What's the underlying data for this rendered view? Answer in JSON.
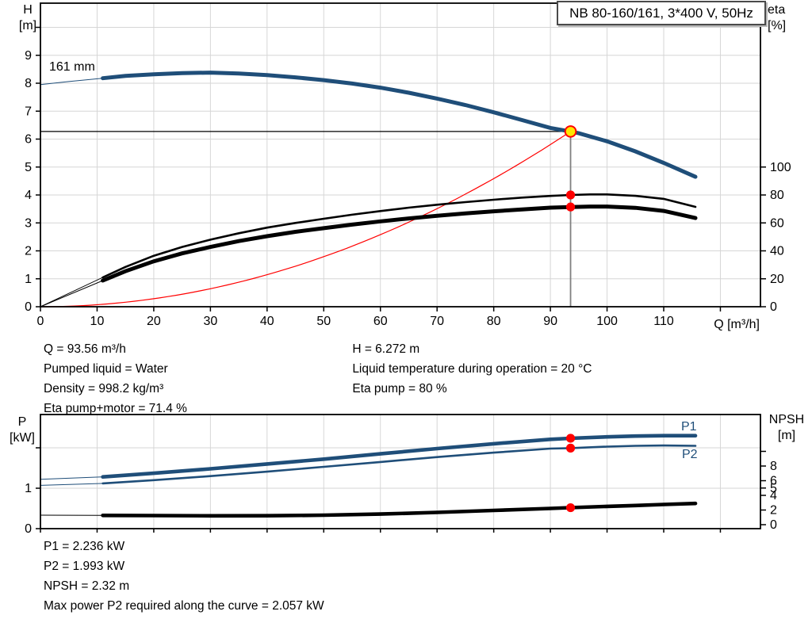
{
  "colors": {
    "blue": "#1F4E79",
    "red": "#FF0000",
    "yellow": "#FFE600",
    "grid": "#D6D6D6",
    "axis": "#000000",
    "gray_drop_line": "#808080"
  },
  "chart_data": [
    {
      "id": "qh-eta-chart",
      "type": "line",
      "title": "NB 80-160/161, 3*400 V, 50Hz",
      "xlabel": "Q [m³/h]",
      "ylabel_left": [
        "H",
        "[m]"
      ],
      "ylabel_right": [
        "eta",
        "[%]"
      ],
      "impeller_label": "161 mm",
      "grid": true,
      "xlim": [
        0,
        127
      ],
      "ylim_left": [
        0,
        10.87
      ],
      "eta_percent_per_left_unit": 20,
      "x_tick_values": [
        0,
        10,
        20,
        30,
        40,
        50,
        60,
        70,
        80,
        90,
        100,
        110
      ],
      "x_grid_values": [
        10,
        20,
        30,
        40,
        50,
        60,
        70,
        80,
        90,
        100,
        110,
        120
      ],
      "left_tick_values": [
        0,
        1,
        2,
        3,
        4,
        5,
        6,
        7,
        8,
        9,
        10
      ],
      "left_tick_labels": [
        "0",
        "1",
        "2",
        "3",
        "4",
        "5",
        "6",
        "7",
        "8",
        "9",
        ""
      ],
      "right_tick_values": [
        0,
        20,
        40,
        60,
        80,
        100
      ],
      "right_tick_labels": [
        "0",
        "20",
        "40",
        "60",
        "80",
        "100"
      ],
      "series": [
        {
          "name": "pump-curve-161mm",
          "axis": "left",
          "color": "#1F4E79",
          "width": 5,
          "thin_until": 11,
          "points": [
            [
              0,
              7.95
            ],
            [
              5,
              8.06
            ],
            [
              11,
              8.18
            ],
            [
              15,
              8.26
            ],
            [
              20,
              8.32
            ],
            [
              25,
              8.36
            ],
            [
              30,
              8.38
            ],
            [
              35,
              8.35
            ],
            [
              40,
              8.29
            ],
            [
              45,
              8.21
            ],
            [
              50,
              8.11
            ],
            [
              55,
              7.99
            ],
            [
              60,
              7.84
            ],
            [
              65,
              7.66
            ],
            [
              70,
              7.45
            ],
            [
              75,
              7.22
            ],
            [
              80,
              6.96
            ],
            [
              85,
              6.68
            ],
            [
              90,
              6.4
            ],
            [
              93.56,
              6.272
            ],
            [
              95,
              6.21
            ],
            [
              100,
              5.92
            ],
            [
              105,
              5.56
            ],
            [
              110,
              5.15
            ],
            [
              115.6,
              4.65
            ]
          ]
        },
        {
          "name": "eta-pump-curve",
          "axis": "eta",
          "color": "#000000",
          "width": 2.6,
          "thin_until": 11,
          "points": [
            [
              0,
              0
            ],
            [
              11,
              21
            ],
            [
              15,
              28.5
            ],
            [
              20,
              36.5
            ],
            [
              25,
              42.8
            ],
            [
              30,
              48
            ],
            [
              35,
              52.6
            ],
            [
              40,
              56.6
            ],
            [
              45,
              60
            ],
            [
              50,
              63
            ],
            [
              55,
              65.9
            ],
            [
              60,
              68.5
            ],
            [
              65,
              70.9
            ],
            [
              70,
              73
            ],
            [
              75,
              74.9
            ],
            [
              80,
              76.6
            ],
            [
              85,
              78.1
            ],
            [
              90,
              79.3
            ],
            [
              93.56,
              80
            ],
            [
              97,
              80.4
            ],
            [
              100,
              80.4
            ],
            [
              105,
              79.4
            ],
            [
              110,
              77.2
            ],
            [
              115.6,
              71.5
            ]
          ]
        },
        {
          "name": "eta-pump-motor-curve",
          "axis": "eta",
          "color": "#000000",
          "width": 5,
          "thin_until": 11,
          "points": [
            [
              0,
              0
            ],
            [
              11,
              18.7
            ],
            [
              15,
              25.4
            ],
            [
              20,
              32.5
            ],
            [
              25,
              38.2
            ],
            [
              30,
              42.8
            ],
            [
              35,
              47
            ],
            [
              40,
              50.5
            ],
            [
              45,
              53.6
            ],
            [
              50,
              56.2
            ],
            [
              55,
              58.8
            ],
            [
              60,
              61.1
            ],
            [
              65,
              63.2
            ],
            [
              70,
              65.1
            ],
            [
              75,
              66.8
            ],
            [
              80,
              68.3
            ],
            [
              85,
              69.7
            ],
            [
              90,
              70.9
            ],
            [
              93.56,
              71.4
            ],
            [
              97,
              71.7
            ],
            [
              100,
              71.7
            ],
            [
              105,
              70.8
            ],
            [
              110,
              68.6
            ],
            [
              115.6,
              63.5
            ]
          ]
        },
        {
          "name": "system-curve",
          "axis": "left",
          "color": "#FF0000",
          "width": 1.2,
          "quadratic": {
            "q_end": 93.56,
            "h_end": 6.272,
            "exponent": 2
          }
        }
      ],
      "operating_point": {
        "q": 93.56,
        "h": 6.272,
        "eta_pump": 80,
        "eta_pump_motor": 71.4
      }
    },
    {
      "id": "power-npsh-chart",
      "type": "line",
      "xlabel": "",
      "ylabel_left": [
        "P",
        "[kW]"
      ],
      "ylabel_right": [
        "NPSH",
        "[m]"
      ],
      "grid": true,
      "xlim": [
        0,
        127
      ],
      "ylim_left": [
        0,
        2.82
      ],
      "ylim_right": [
        0,
        11.5
      ],
      "x_grid_values": [
        10,
        20,
        30,
        40,
        50,
        60,
        70,
        80,
        90,
        100,
        110,
        120
      ],
      "left_tick_values": [
        0,
        1,
        2
      ],
      "left_tick_labels": [
        "0",
        "1",
        ""
      ],
      "right_tick_values": [
        0,
        2,
        4,
        5,
        6,
        8,
        10
      ],
      "right_tick_labels": [
        "0",
        "2",
        "4",
        "5",
        "6",
        "8",
        ""
      ],
      "series": [
        {
          "name": "p1-curve",
          "label": "P1",
          "axis": "kw",
          "color": "#1F4E79",
          "width": 4.6,
          "thin_until": 11,
          "points": [
            [
              0,
              1.22
            ],
            [
              11,
              1.28
            ],
            [
              20,
              1.37
            ],
            [
              30,
              1.48
            ],
            [
              40,
              1.6
            ],
            [
              50,
              1.72
            ],
            [
              60,
              1.85
            ],
            [
              70,
              1.98
            ],
            [
              80,
              2.1
            ],
            [
              90,
              2.21
            ],
            [
              93.56,
              2.236
            ],
            [
              100,
              2.27
            ],
            [
              105,
              2.29
            ],
            [
              110,
              2.3
            ],
            [
              115.6,
              2.3
            ]
          ]
        },
        {
          "name": "p2-curve",
          "label": "P2",
          "axis": "kw",
          "color": "#1F4E79",
          "width": 2.6,
          "thin_until": 11,
          "points": [
            [
              0,
              1.07
            ],
            [
              11,
              1.12
            ],
            [
              20,
              1.2
            ],
            [
              30,
              1.3
            ],
            [
              40,
              1.41
            ],
            [
              50,
              1.53
            ],
            [
              60,
              1.65
            ],
            [
              70,
              1.77
            ],
            [
              80,
              1.88
            ],
            [
              90,
              1.98
            ],
            [
              93.56,
              1.993
            ],
            [
              100,
              2.03
            ],
            [
              105,
              2.05
            ],
            [
              110,
              2.057
            ],
            [
              115.6,
              2.05
            ]
          ]
        },
        {
          "name": "npsh-curve",
          "axis": "npsh",
          "color": "#000000",
          "width": 4.6,
          "thin_until": 11,
          "points": [
            [
              0,
              1.3
            ],
            [
              11,
              1.27
            ],
            [
              20,
              1.24
            ],
            [
              30,
              1.21
            ],
            [
              40,
              1.22
            ],
            [
              50,
              1.3
            ],
            [
              60,
              1.45
            ],
            [
              70,
              1.68
            ],
            [
              80,
              1.95
            ],
            [
              90,
              2.22
            ],
            [
              93.56,
              2.32
            ],
            [
              100,
              2.5
            ],
            [
              105,
              2.62
            ],
            [
              110,
              2.76
            ],
            [
              115.6,
              2.9
            ]
          ]
        }
      ],
      "operating_point": {
        "q": 93.56,
        "p1": 2.236,
        "p2": 1.993,
        "npsh": 2.32
      }
    }
  ],
  "info_top": {
    "col1": [
      "Q = 93.56 m³/h",
      "Pumped liquid = Water",
      "Density = 998.2 kg/m³",
      "Eta pump+motor = 71.4 %"
    ],
    "col2": [
      "H = 6.272 m",
      "Liquid temperature during operation = 20 °C",
      "Eta pump = 80 %"
    ]
  },
  "info_bottom": [
    "P1 = 2.236 kW",
    "P2 = 1.993 kW",
    "NPSH = 2.32 m",
    "Max power P2 required along the curve = 2.057 kW"
  ]
}
